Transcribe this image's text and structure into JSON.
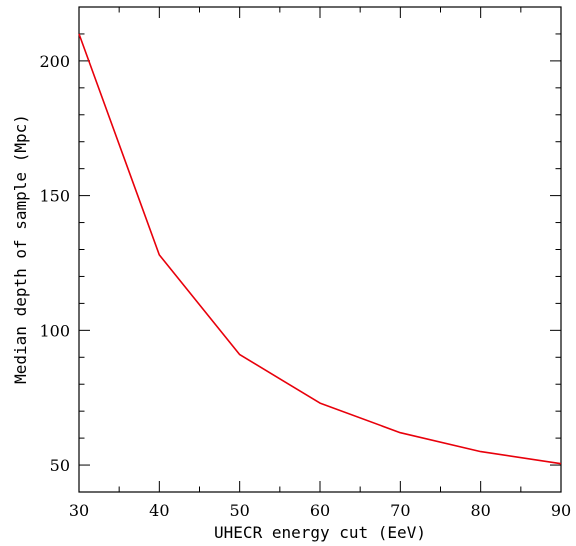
{
  "chart_data": {
    "type": "line",
    "title": "",
    "xlabel": "UHECR energy cut (EeV)",
    "ylabel": "Median depth of sample (Mpc)",
    "xlim": [
      30,
      90
    ],
    "ylim": [
      40,
      220
    ],
    "x_major_ticks": [
      30,
      40,
      50,
      60,
      70,
      80,
      90
    ],
    "x_minor_step": 5,
    "x_tick_labels": [
      "30",
      "40",
      "50",
      "60",
      "70",
      "80",
      "90"
    ],
    "y_major_ticks": [
      50,
      100,
      150,
      200
    ],
    "y_minor_step": 10,
    "y_tick_labels": [
      "50",
      "100",
      "150",
      "200"
    ],
    "grid": false,
    "legend": "none",
    "series": [
      {
        "color": "#e8000b",
        "x": [
          30,
          40,
          50,
          60,
          70,
          80,
          90
        ],
        "y": [
          210,
          128,
          91,
          73,
          62,
          55,
          50.5
        ]
      }
    ]
  }
}
